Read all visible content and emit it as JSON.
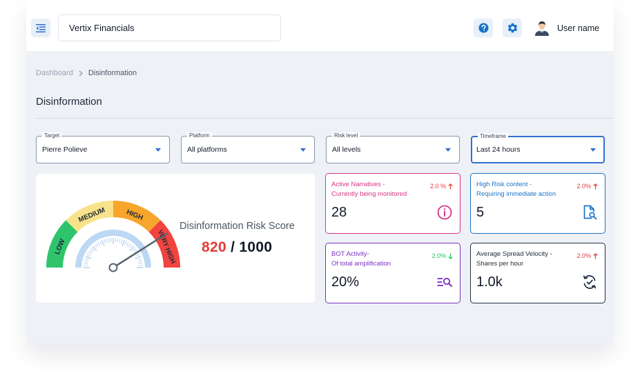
{
  "header": {
    "app_name": "Vertix Financials",
    "user_name": "User name",
    "icons": [
      "menu-collapse-icon",
      "help-icon",
      "gear-icon",
      "user-avatar"
    ],
    "accent_color": "#2f6fd0"
  },
  "breadcrumb": {
    "root": "Dashboard",
    "current": "Disinformation"
  },
  "page": {
    "title": "Disinformation"
  },
  "filters": [
    {
      "label": "Target",
      "value": "Pierre Polieve",
      "active": false
    },
    {
      "label": "Platform",
      "value": "All platforms",
      "active": false
    },
    {
      "label": "Risk level",
      "value": "All levels",
      "active": false
    },
    {
      "label": "Timeframe",
      "value": "Last 24 hours",
      "active": true
    }
  ],
  "gauge": {
    "title": "Disinformation Risk Score",
    "score": "820",
    "separator": "/",
    "max": "1000",
    "score_fraction": 0.82,
    "segments": [
      {
        "label": "LOW",
        "color": "#2fc46b"
      },
      {
        "label": "MEDIUM",
        "color": "#f8e38a"
      },
      {
        "label": "HIGH",
        "color": "#f7a52b"
      },
      {
        "label": "VERY HIGH",
        "color": "#f1443f"
      }
    ]
  },
  "kpis": [
    {
      "label_line1": "Active Narratives -",
      "label_line2": "Currently being monitored",
      "change": "2.0 %",
      "direction": "up",
      "value": "28",
      "icon": "info-circle-icon",
      "color": "#d63384",
      "change_color": "#e53935"
    },
    {
      "label_line1": "High Risk content -",
      "label_line2": "Requiring immediate action",
      "change": "2.0%",
      "direction": "up",
      "value": "5",
      "icon": "document-search-icon",
      "color": "#1a73c8",
      "change_color": "#e53935"
    },
    {
      "label_line1": "BOT Activity-",
      "label_line2": "Of total amplification",
      "change": "2.0%",
      "direction": "down",
      "value": "20%",
      "icon": "list-search-icon",
      "color": "#7b2fbf",
      "change_color": "#22c55e"
    },
    {
      "label_line1": "Average Spread Velocity -",
      "label_line2": "Shares per hour",
      "change": "2.0%",
      "direction": "up",
      "value": "1.0k",
      "icon": "sync-check-icon",
      "color": "#1f2a44",
      "change_color": "#e53935"
    }
  ]
}
